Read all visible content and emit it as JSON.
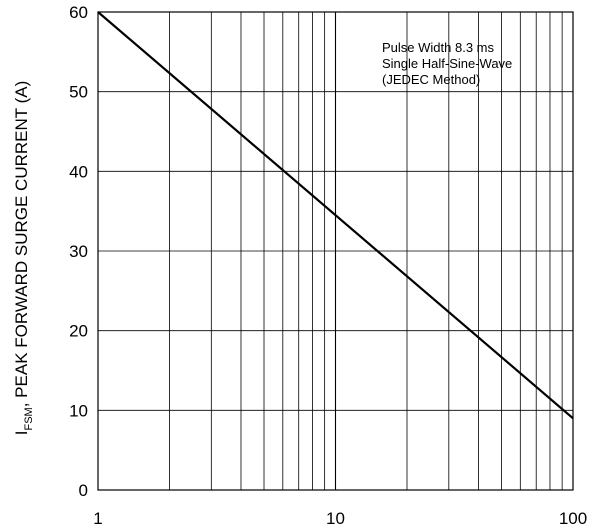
{
  "chart_data": {
    "type": "line",
    "xscale": "log",
    "xlim": [
      1,
      100
    ],
    "ylim": [
      0,
      60
    ],
    "x_ticks": [
      1,
      10,
      100
    ],
    "x_tick_labels": [
      "1",
      "10",
      "100"
    ],
    "y_ticks": [
      0,
      10,
      20,
      30,
      40,
      50,
      60
    ],
    "y_tick_labels": [
      "0",
      "10",
      "20",
      "30",
      "40",
      "50",
      "60"
    ],
    "ylabel_prefix": "I",
    "ylabel_subscript": "FSM",
    "ylabel_rest": ", PEAK FORWARD SURGE CURRENT (A)",
    "xlabel": "",
    "annotation_lines": [
      "Pulse Width 8.3 ms",
      "Single Half-Sine-Wave",
      "(JEDEC Method)"
    ],
    "grid": true,
    "line_color": "#000000",
    "series": [
      {
        "x": [
          1,
          100
        ],
        "y": [
          60,
          9
        ]
      }
    ]
  }
}
